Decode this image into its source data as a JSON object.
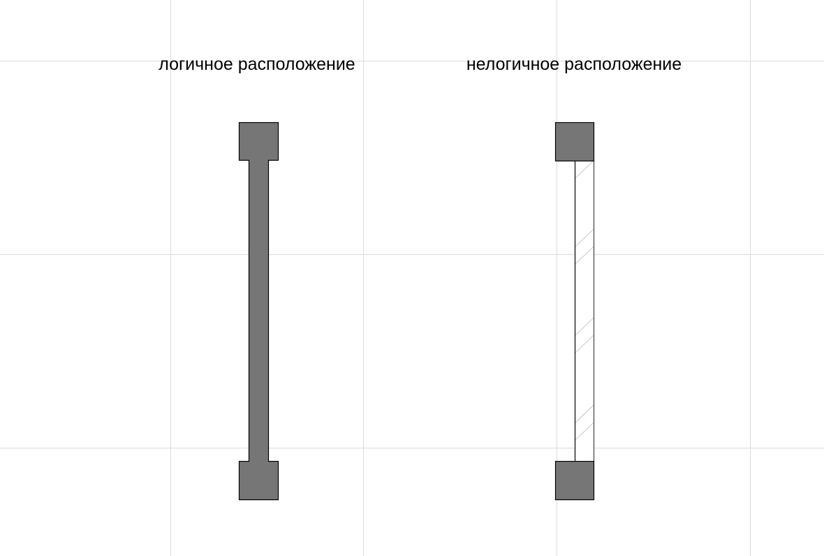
{
  "labels": {
    "logical": "логичное расположение",
    "illogical": "нелогичное расположение"
  },
  "colors": {
    "grid": "#dcdcdc",
    "fill": "#767676",
    "outline": "#000000",
    "hatch": "#b0b0b0"
  }
}
